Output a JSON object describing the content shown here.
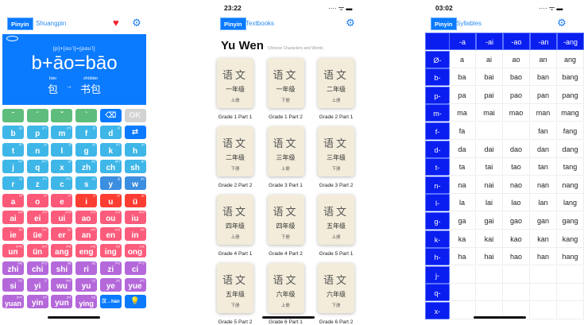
{
  "keyboard_screen": {
    "tabs": {
      "pinyin": "Pinyin",
      "shuangpin": "Shuangpin"
    },
    "icons": [
      "mouth-icon",
      "heart-icon",
      "gear-icon"
    ],
    "display": {
      "ipa": "[p]+[ɑʊ˥]=[pɑʊ˥]",
      "formula": "b+āo=bāo",
      "word1_pinyin": "bāo",
      "word1": "包",
      "arrow": "→",
      "word2_pinyin": "shūbāo",
      "word2": "书包"
    },
    "colors": {
      "tone": "#5ebd7c",
      "action": "#0a7aff",
      "disabled": "#d2d2d2",
      "initial": "#3eb6e8",
      "semi": "#3b8ee0",
      "vowel": "#fc5878",
      "vowel_i": "#fc3d32",
      "final": "#fc5c7c",
      "whole": "#b468da"
    },
    "rows": [
      [
        {
          "t": "ˉ",
          "c": "tone"
        },
        {
          "t": "ˊ",
          "c": "tone"
        },
        {
          "t": "ˇ",
          "c": "tone"
        },
        {
          "t": "ˋ",
          "c": "tone"
        },
        {
          "t": "⌫",
          "c": "action",
          "icon": "backspace-icon"
        },
        {
          "t": "OK",
          "c": "disabled"
        }
      ],
      [
        {
          "t": "b",
          "s": "[p]",
          "c": "initial"
        },
        {
          "t": "p",
          "s": "[pʰ]",
          "c": "initial"
        },
        {
          "t": "m",
          "s": "[m]",
          "c": "initial"
        },
        {
          "t": "f",
          "s": "[f]",
          "c": "initial"
        },
        {
          "t": "d",
          "s": "[t]",
          "c": "initial"
        },
        {
          "t": "⇄",
          "c": "action",
          "icon": "swap-icon"
        }
      ],
      [
        {
          "t": "t",
          "s": "[tʰ]",
          "c": "initial"
        },
        {
          "t": "n",
          "s": "[n]",
          "c": "initial"
        },
        {
          "t": "l",
          "s": "[l]",
          "c": "initial"
        },
        {
          "t": "g",
          "s": "[k]",
          "c": "initial"
        },
        {
          "t": "k",
          "s": "[kʰ]",
          "c": "initial"
        },
        {
          "t": "h",
          "s": "[x]",
          "c": "initial"
        }
      ],
      [
        {
          "t": "j",
          "s": "[tɕ]",
          "c": "initial"
        },
        {
          "t": "q",
          "s": "[tɕʰ]",
          "c": "initial"
        },
        {
          "t": "x",
          "s": "[ɕ]",
          "c": "initial"
        },
        {
          "t": "zh",
          "s": "[tʂ]",
          "c": "initial"
        },
        {
          "t": "ch",
          "s": "[tʂʰ]",
          "c": "initial"
        },
        {
          "t": "sh",
          "s": "[ʂ]",
          "c": "initial"
        }
      ],
      [
        {
          "t": "r",
          "s": "[ʐ]",
          "c": "initial"
        },
        {
          "t": "z",
          "s": "[ts]",
          "c": "initial"
        },
        {
          "t": "c",
          "s": "[tsʰ]",
          "c": "initial"
        },
        {
          "t": "s",
          "s": "[s]",
          "c": "initial"
        },
        {
          "t": "y",
          "s": "[j]",
          "c": "semi"
        },
        {
          "t": "w",
          "s": "[w]",
          "c": "semi"
        }
      ],
      [
        {
          "t": "a",
          "s": "[a]",
          "c": "vowel"
        },
        {
          "t": "o",
          "s": "[o]",
          "c": "vowel"
        },
        {
          "t": "e",
          "s": "[ɤ]",
          "c": "vowel"
        },
        {
          "t": "i",
          "s": "[i]",
          "c": "vowel_i"
        },
        {
          "t": "u",
          "s": "[u]",
          "c": "vowel_i"
        },
        {
          "t": "ü",
          "s": "[y]",
          "c": "vowel_i"
        }
      ],
      [
        {
          "t": "ai",
          "s": "[aɪ]",
          "c": "final"
        },
        {
          "t": "ei",
          "s": "[eɪ]",
          "c": "final"
        },
        {
          "t": "ui",
          "s": "[ueɪ]",
          "c": "final"
        },
        {
          "t": "ao",
          "s": "[ɑʊ]",
          "c": "final"
        },
        {
          "t": "ou",
          "s": "[oʊ]",
          "c": "final"
        },
        {
          "t": "iu",
          "s": "[ioʊ]",
          "c": "final"
        }
      ],
      [
        {
          "t": "ie",
          "s": "[iɛ]",
          "c": "final"
        },
        {
          "t": "üe",
          "s": "[yɛ]",
          "c": "final"
        },
        {
          "t": "er",
          "s": "[ɚ]",
          "c": "final"
        },
        {
          "t": "an",
          "s": "[an]",
          "c": "final"
        },
        {
          "t": "en",
          "s": "[ən]",
          "c": "final"
        },
        {
          "t": "in",
          "s": "[in]",
          "c": "final"
        }
      ],
      [
        {
          "t": "un",
          "s": "[uən]",
          "c": "final"
        },
        {
          "t": "ün",
          "s": "[yn]",
          "c": "final"
        },
        {
          "t": "ang",
          "s": "[ɑŋ]",
          "c": "final"
        },
        {
          "t": "eng",
          "s": "[əŋ]",
          "c": "final"
        },
        {
          "t": "ing",
          "s": "[iŋ]",
          "c": "final"
        },
        {
          "t": "ong",
          "s": "[ʊŋ]",
          "c": "final"
        }
      ],
      [
        {
          "t": "zhi",
          "s": "[tʂʅ]",
          "c": "whole"
        },
        {
          "t": "chi",
          "s": "[tʂʰʅ]",
          "c": "whole"
        },
        {
          "t": "shi",
          "s": "[ʂʅ]",
          "c": "whole"
        },
        {
          "t": "ri",
          "s": "[ʐʅ]",
          "c": "whole"
        },
        {
          "t": "zi",
          "s": "[tsɿ]",
          "c": "whole"
        },
        {
          "t": "ci",
          "s": "[tsʰɿ]",
          "c": "whole"
        }
      ],
      [
        {
          "t": "si",
          "s": "[sɿ]",
          "c": "whole"
        },
        {
          "t": "yi",
          "s": "[i]",
          "c": "whole"
        },
        {
          "t": "wu",
          "s": "[wu]",
          "c": "whole"
        },
        {
          "t": "yu",
          "s": "[y]",
          "c": "whole"
        },
        {
          "t": "ye",
          "s": "[jɛ]",
          "c": "whole"
        },
        {
          "t": "yue",
          "s": "[yɛ]",
          "c": "whole"
        }
      ],
      [
        {
          "t": "yuan",
          "s": "[yɛn]",
          "c": "whole"
        },
        {
          "t": "yin",
          "s": "[in]",
          "c": "whole"
        },
        {
          "t": "yun",
          "s": "[yn]",
          "c": "whole"
        },
        {
          "t": "ying",
          "s": "[iŋ]",
          "c": "whole"
        },
        {
          "t": "汉→hàn",
          "c": "action"
        },
        {
          "t": "💡",
          "c": "action",
          "icon": "lightbulb-icon"
        }
      ]
    ]
  },
  "textbooks_screen": {
    "time": "23:22",
    "tabs": {
      "pinyin": "Pinyin",
      "textbooks": "Textbooks"
    },
    "title": "Yu Wen",
    "subtitle": "Chinese Characters and Words",
    "books": [
      {
        "cover": "语文",
        "grade": "一年级",
        "part": "上册",
        "label": "Grade 1 Part 1"
      },
      {
        "cover": "语文",
        "grade": "一年级",
        "part": "下册",
        "label": "Grade 1 Part 2"
      },
      {
        "cover": "语文",
        "grade": "二年级",
        "part": "上册",
        "label": "Grade 2 Part 1"
      },
      {
        "cover": "语文",
        "grade": "二年级",
        "part": "下册",
        "label": "Grade 2 Part 2"
      },
      {
        "cover": "语文",
        "grade": "三年级",
        "part": "上册",
        "label": "Grade 3 Part 1"
      },
      {
        "cover": "语文",
        "grade": "三年级",
        "part": "下册",
        "label": "Grade 3 Part 2"
      },
      {
        "cover": "语文",
        "grade": "四年级",
        "part": "上册",
        "label": "Grade 4 Part 1"
      },
      {
        "cover": "语文",
        "grade": "四年级",
        "part": "下册",
        "label": "Grade 4 Part 2"
      },
      {
        "cover": "语文",
        "grade": "五年级",
        "part": "上册",
        "label": "Grade 5 Part 1"
      },
      {
        "cover": "语文",
        "grade": "五年级",
        "part": "下册",
        "label": "Grade 5 Part 2"
      },
      {
        "cover": "语文",
        "grade": "六年级",
        "part": "上册",
        "label": "Grade 6 Part 1"
      },
      {
        "cover": "语文",
        "grade": "六年级",
        "part": "下册",
        "label": "Grade 6 Part 2"
      }
    ]
  },
  "syllables_screen": {
    "time": "03:02",
    "tabs": {
      "pinyin": "Pinyin",
      "syllables": "Syllables"
    },
    "columns": [
      "-a",
      "-ai",
      "-ao",
      "-an",
      "-ang"
    ],
    "rows": [
      {
        "h": "Ø-",
        "c": [
          "a",
          "ai",
          "ao",
          "an",
          "ang"
        ]
      },
      {
        "h": "b-",
        "c": [
          "ba",
          "bai",
          "bao",
          "ban",
          "bang"
        ]
      },
      {
        "h": "p-",
        "c": [
          "pa",
          "pai",
          "pao",
          "pan",
          "pang"
        ]
      },
      {
        "h": "m-",
        "c": [
          "ma",
          "mai",
          "mao",
          "man",
          "mang"
        ]
      },
      {
        "h": "f-",
        "c": [
          "fa",
          "",
          "",
          "fan",
          "fang"
        ]
      },
      {
        "h": "d-",
        "c": [
          "da",
          "dai",
          "dao",
          "dan",
          "dang"
        ]
      },
      {
        "h": "t-",
        "c": [
          "ta",
          "tai",
          "tao",
          "tan",
          "tang"
        ]
      },
      {
        "h": "n-",
        "c": [
          "na",
          "nai",
          "nao",
          "nan",
          "nang"
        ]
      },
      {
        "h": "l-",
        "c": [
          "la",
          "lai",
          "lao",
          "lan",
          "lang"
        ]
      },
      {
        "h": "g-",
        "c": [
          "ga",
          "gai",
          "gao",
          "gan",
          "gang"
        ]
      },
      {
        "h": "k-",
        "c": [
          "ka",
          "kai",
          "kao",
          "kan",
          "kang"
        ]
      },
      {
        "h": "h-",
        "c": [
          "ha",
          "hai",
          "hao",
          "han",
          "hang"
        ]
      },
      {
        "h": "j-",
        "c": [
          "",
          "",
          "",
          "",
          ""
        ]
      },
      {
        "h": "q-",
        "c": [
          "",
          "",
          "",
          "",
          ""
        ]
      },
      {
        "h": "x-",
        "c": [
          "",
          "",
          "",
          "",
          ""
        ]
      }
    ]
  }
}
